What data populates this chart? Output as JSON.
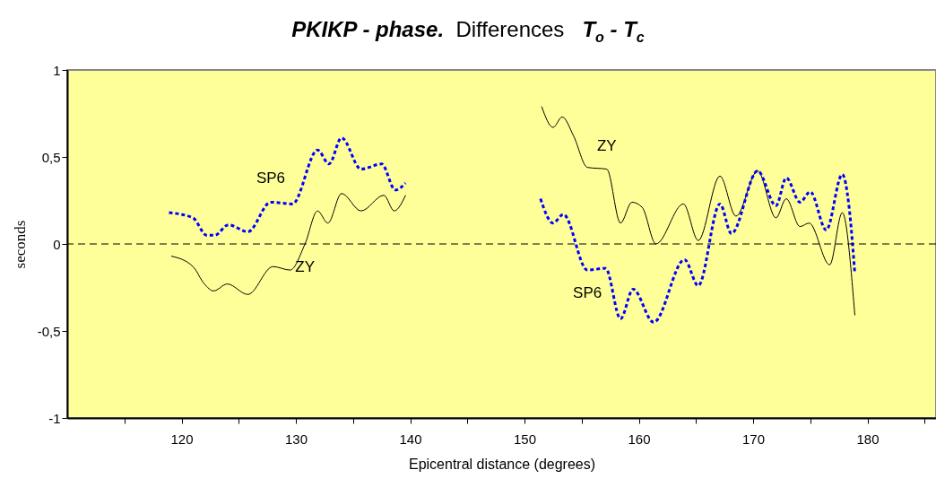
{
  "chart_data": {
    "type": "line",
    "title": "PKIKP - phase.  Differences   T$_{o}$ - T$_{c}$",
    "xlabel": "Epicentral distance (degrees)",
    "ylabel": "seconds",
    "xlim": [
      110,
      186
    ],
    "xticks": [
      {
        "value": 115,
        "label": null
      },
      120,
      {
        "value": 125,
        "label": null
      },
      130,
      {
        "value": 135,
        "label": null
      },
      140,
      {
        "value": 145,
        "label": null
      },
      150,
      {
        "value": 155,
        "label": null
      },
      160,
      {
        "value": 165,
        "label": null
      },
      170,
      {
        "value": 175,
        "label": null
      },
      180,
      {
        "value": 185,
        "label": null
      }
    ],
    "ylim": [
      -1,
      1
    ],
    "yticks": [
      -1,
      {
        "value": -0.5,
        "label": "-0,5"
      },
      0,
      {
        "value": 0.5,
        "label": "0,5"
      },
      1
    ],
    "grid": false,
    "marker": "none",
    "series": [
      {
        "name": "ZY",
        "color": "#000000",
        "line_style": "solid",
        "x": [
          119.1,
          121.0,
          122.0,
          122.8,
          124.0,
          125.8,
          128.0,
          129.5,
          130.8,
          131.9,
          132.8,
          134.0,
          135.7,
          137.7,
          138.6,
          139.6
        ],
        "values": [
          -0.07,
          -0.13,
          -0.23,
          -0.27,
          -0.23,
          -0.29,
          -0.13,
          -0.15,
          0.0,
          0.19,
          0.12,
          0.29,
          0.19,
          0.28,
          0.19,
          0.28
        ]
      },
      {
        "name": "SP6",
        "color": "#0000ff",
        "line_style": "dashed",
        "x": [
          118.9,
          121.0,
          122.2,
          122.9,
          124.1,
          125.8,
          127.8,
          129.7,
          131.9,
          132.9,
          134.0,
          135.7,
          137.5,
          138.7,
          139.6
        ],
        "values": [
          0.18,
          0.15,
          0.05,
          0.05,
          0.11,
          0.07,
          0.24,
          0.23,
          0.54,
          0.46,
          0.61,
          0.43,
          0.46,
          0.31,
          0.35
        ]
      },
      {
        "name": "ZY",
        "color": "#000000",
        "line_style": "solid",
        "x": [
          151.5,
          152.5,
          153.3,
          154.3,
          155.5,
          157.2,
          158.4,
          159.4,
          160.3,
          161.5,
          163.9,
          165.2,
          167.1,
          168.5,
          170.4,
          172.0,
          172.9,
          174.1,
          174.9,
          176.7,
          177.8,
          178.9
        ],
        "values": [
          0.79,
          0.67,
          0.73,
          0.62,
          0.44,
          0.43,
          0.12,
          0.24,
          0.21,
          0.0,
          0.23,
          0.02,
          0.39,
          0.16,
          0.42,
          0.15,
          0.26,
          0.1,
          0.12,
          -0.12,
          0.18,
          -0.41
        ]
      },
      {
        "name": "SP6",
        "color": "#0000ff",
        "line_style": "dashed",
        "x": [
          151.4,
          152.5,
          153.4,
          155.5,
          157.1,
          158.4,
          159.5,
          161.3,
          164.0,
          165.2,
          167.1,
          168.1,
          170.4,
          172.0,
          172.9,
          174.1,
          175.0,
          176.4,
          177.8,
          178.4,
          178.9
        ],
        "values": [
          0.26,
          0.12,
          0.17,
          -0.15,
          -0.14,
          -0.43,
          -0.26,
          -0.45,
          -0.09,
          -0.24,
          0.23,
          0.06,
          0.42,
          0.22,
          0.38,
          0.24,
          0.3,
          0.08,
          0.4,
          0.21,
          -0.17
        ]
      }
    ],
    "ref_lines": [
      {
        "axis": "y",
        "value": 0,
        "color": "#000000",
        "line_style": "dashed"
      }
    ]
  }
}
